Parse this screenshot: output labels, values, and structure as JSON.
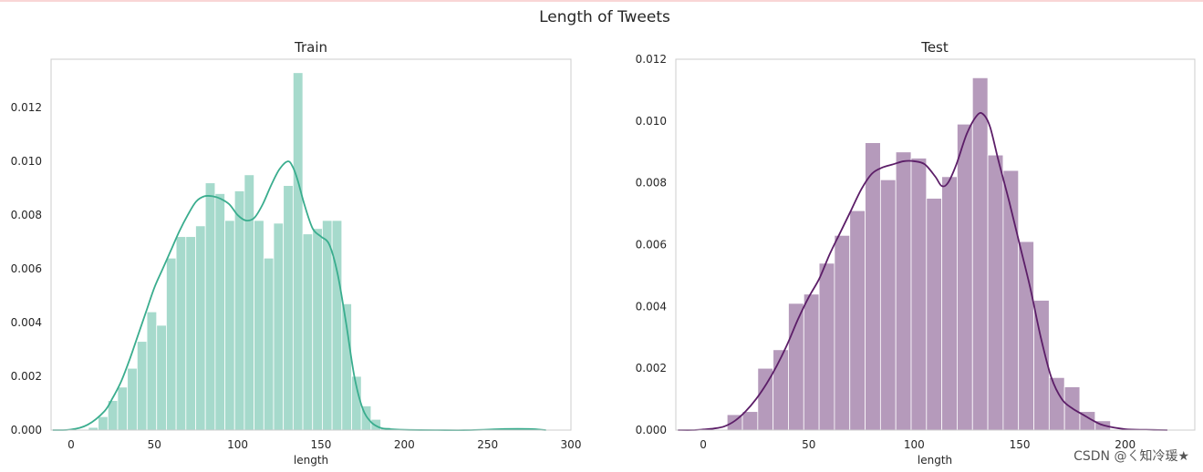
{
  "figure_title": "Length of Tweets",
  "watermark": "CSDN @ㄑ知冷瑗★",
  "chart_data": [
    {
      "type": "bar",
      "title": "Train",
      "xlabel": "length",
      "ylabel": "",
      "xlim": [
        -12,
        300
      ],
      "ylim": [
        0,
        0.0138
      ],
      "grid": false,
      "color": "#3aad8e",
      "bar_alpha": 0.45,
      "xticks": [
        0,
        50,
        100,
        150,
        200,
        250,
        300
      ],
      "xtick_labels": [
        "0",
        "50",
        "100",
        "150",
        "200",
        "250",
        "300"
      ],
      "yticks": [
        0,
        0.002,
        0.004,
        0.006,
        0.008,
        0.01,
        0.012
      ],
      "ytick_labels": [
        "0.000",
        "0.002",
        "0.004",
        "0.006",
        "0.008",
        "0.010",
        "0.012"
      ],
      "bin_width": 5.85,
      "bin_starts": [
        10.4,
        16.25,
        22.1,
        27.95,
        33.8,
        39.65,
        45.5,
        51.35,
        57.2,
        63.05,
        68.9,
        74.75,
        80.6,
        86.45,
        92.3,
        98.15,
        104.0,
        109.85,
        115.7,
        121.55,
        127.4,
        133.25,
        139.1,
        144.95,
        150.8,
        156.65,
        162.5,
        168.35,
        174.2,
        180.05,
        185.9,
        191.75
      ],
      "values": [
        0.0001,
        0.0005,
        0.0011,
        0.0016,
        0.0023,
        0.0033,
        0.0044,
        0.0039,
        0.0064,
        0.0072,
        0.0072,
        0.0076,
        0.0092,
        0.0088,
        0.0078,
        0.0089,
        0.0095,
        0.0078,
        0.0064,
        0.0077,
        0.0091,
        0.0133,
        0.0073,
        0.0075,
        0.0078,
        0.0078,
        0.0047,
        0.002,
        0.0009,
        0.0004,
        0.0001,
        5e-05
      ],
      "kde": {
        "x": [
          -11,
          0,
          10,
          20,
          25,
          30,
          35,
          40,
          45,
          50,
          55,
          60,
          65,
          70,
          75,
          80,
          85,
          90,
          95,
          100,
          105,
          110,
          115,
          120,
          125,
          130,
          133,
          136,
          140,
          145,
          150,
          155,
          160,
          165,
          170,
          175,
          180,
          185,
          190,
          200,
          220,
          240,
          260,
          275,
          285
        ],
        "y": [
          0.0,
          2e-05,
          0.0002,
          0.0007,
          0.0012,
          0.0018,
          0.0026,
          0.0035,
          0.0044,
          0.0053,
          0.006,
          0.0067,
          0.0074,
          0.008,
          0.0085,
          0.0087,
          0.0087,
          0.0086,
          0.0084,
          0.008,
          0.0078,
          0.0079,
          0.0084,
          0.0091,
          0.0097,
          0.01,
          0.0098,
          0.0093,
          0.0084,
          0.0075,
          0.0072,
          0.0069,
          0.0058,
          0.004,
          0.002,
          0.0008,
          0.0003,
          0.0001,
          4e-05,
          1e-05,
          0.0,
          0.0,
          4e-05,
          4e-05,
          0.0
        ]
      }
    },
    {
      "type": "bar",
      "title": "Test",
      "xlabel": "length",
      "ylabel": "",
      "xlim": [
        -13,
        233
      ],
      "ylim": [
        0,
        0.012
      ],
      "grid": false,
      "color": "#5c1e68",
      "bar_alpha": 0.45,
      "xticks": [
        0,
        50,
        100,
        150,
        200
      ],
      "xtick_labels": [
        "0",
        "50",
        "100",
        "150",
        "200"
      ],
      "yticks": [
        0,
        0.002,
        0.004,
        0.006,
        0.008,
        0.01,
        0.012
      ],
      "ytick_labels": [
        "0.000",
        "0.002",
        "0.004",
        "0.006",
        "0.008",
        "0.010",
        "0.012"
      ],
      "bin_width": 7.27,
      "bin_starts": [
        11.3,
        18.57,
        25.84,
        33.11,
        40.38,
        47.65,
        54.92,
        62.19,
        69.46,
        76.73,
        84.0,
        91.27,
        98.54,
        105.81,
        113.08,
        120.35,
        127.62,
        134.89,
        142.16,
        149.43,
        156.7,
        163.97,
        171.24,
        178.51,
        185.78
      ],
      "values": [
        0.0005,
        0.0006,
        0.002,
        0.0026,
        0.0041,
        0.0044,
        0.0054,
        0.0063,
        0.0071,
        0.0093,
        0.0081,
        0.009,
        0.0088,
        0.0075,
        0.0082,
        0.0099,
        0.0114,
        0.0089,
        0.0084,
        0.0061,
        0.0042,
        0.0017,
        0.0014,
        0.0006,
        0.0003
      ],
      "kde": {
        "x": [
          -12,
          -5,
          0,
          5,
          10,
          15,
          20,
          25,
          30,
          35,
          40,
          45,
          50,
          55,
          60,
          65,
          70,
          75,
          80,
          85,
          90,
          95,
          100,
          105,
          110,
          113,
          116,
          120,
          125,
          130,
          133,
          136,
          140,
          145,
          150,
          155,
          160,
          165,
          170,
          175,
          180,
          185,
          190,
          200,
          210,
          220
        ],
        "y": [
          0.0,
          0.0,
          2e-05,
          5e-05,
          0.00012,
          0.0003,
          0.0006,
          0.001,
          0.0015,
          0.0021,
          0.0028,
          0.0036,
          0.0043,
          0.0049,
          0.0057,
          0.0064,
          0.0071,
          0.0078,
          0.0083,
          0.0085,
          0.0086,
          0.0087,
          0.0087,
          0.0086,
          0.0082,
          0.0079,
          0.008,
          0.0086,
          0.0096,
          0.0102,
          0.0102,
          0.0098,
          0.0087,
          0.0074,
          0.006,
          0.0046,
          0.003,
          0.0017,
          0.001,
          0.0007,
          0.0005,
          0.0003,
          0.00015,
          3e-05,
          1e-05,
          0.0
        ]
      }
    }
  ]
}
